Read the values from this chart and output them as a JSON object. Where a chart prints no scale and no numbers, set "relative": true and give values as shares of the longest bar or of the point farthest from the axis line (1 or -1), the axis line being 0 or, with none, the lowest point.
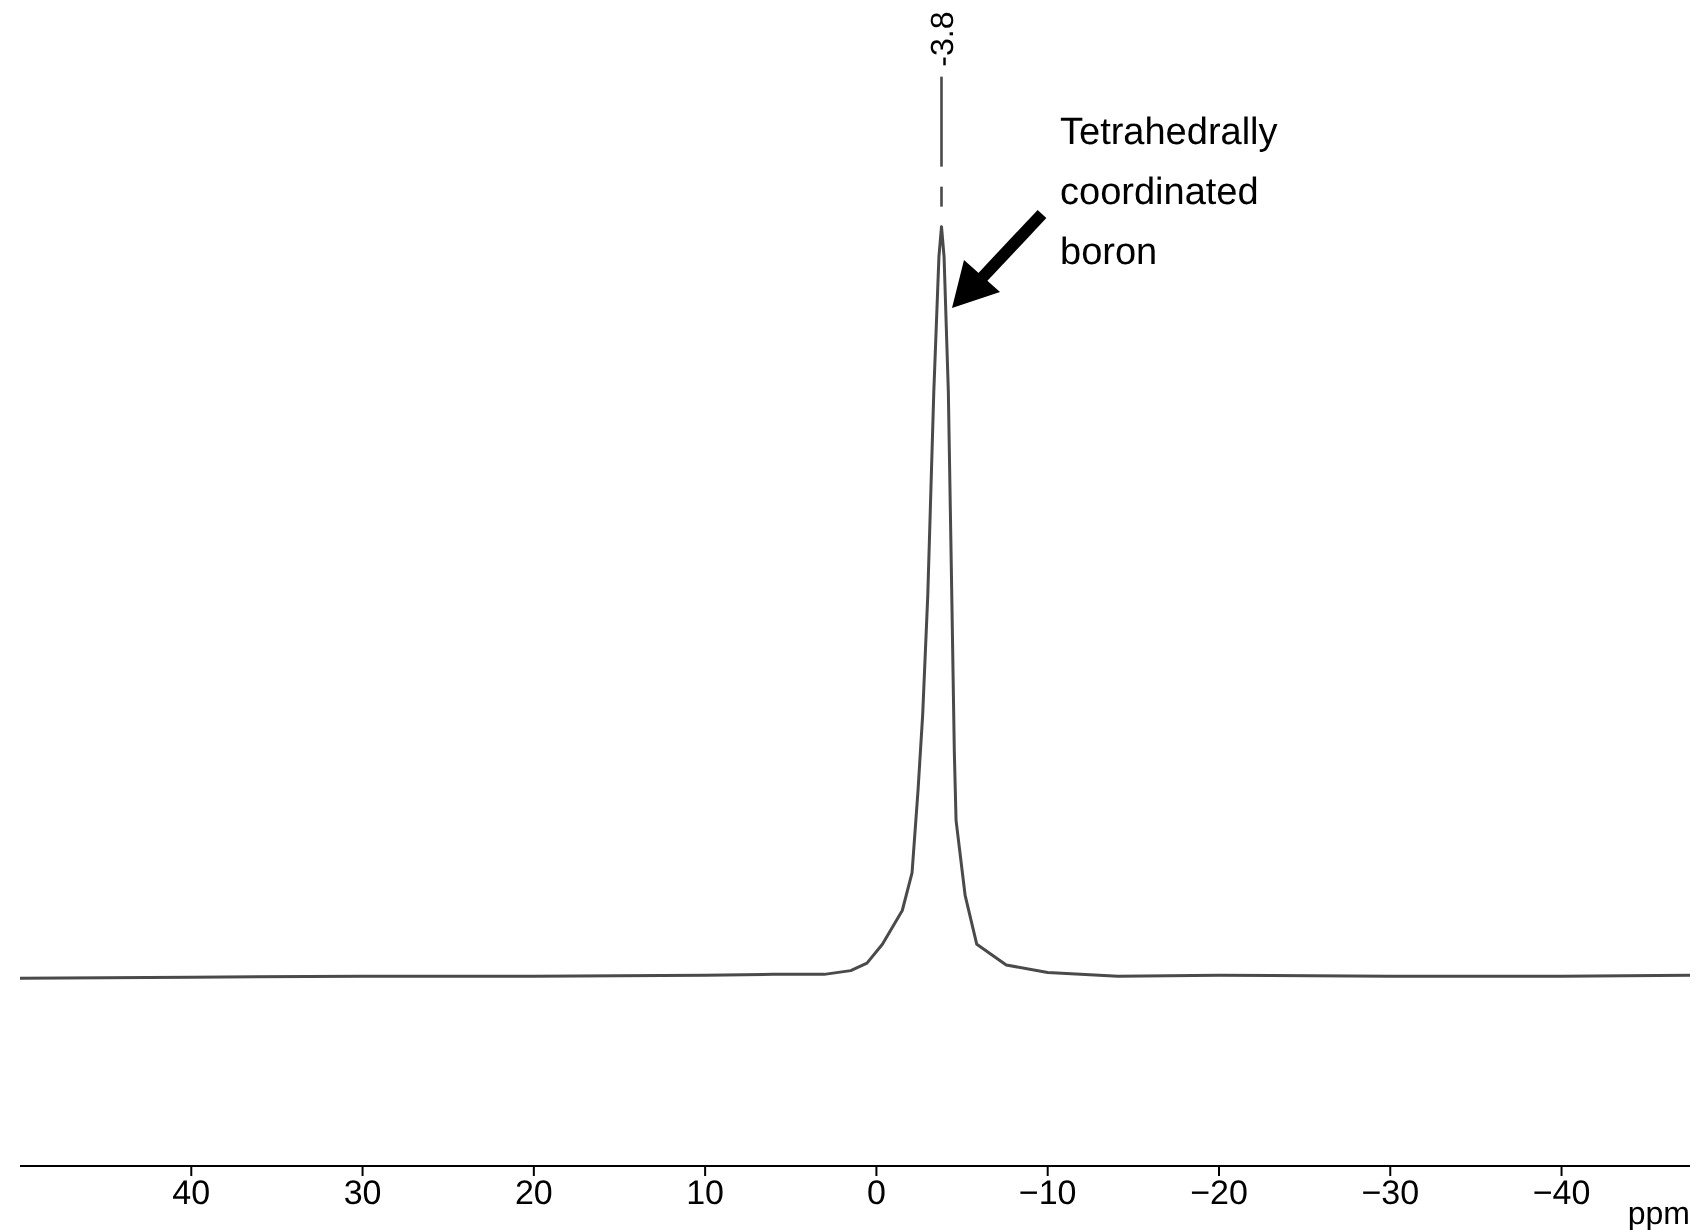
{
  "chart_data": {
    "type": "line",
    "relative": true,
    "xlabel": "ppm",
    "xlim": [
      50,
      -47.5
    ],
    "xticks": [
      40,
      30,
      20,
      10,
      0,
      {
        "value": -10,
        "label": "−10"
      },
      {
        "value": -20,
        "label": "−20"
      },
      {
        "value": -30,
        "label": "−30"
      },
      {
        "value": -40,
        "label": "−40"
      }
    ],
    "x": [
      50,
      40,
      30,
      20,
      10,
      6,
      3.05,
      1.5,
      0.55,
      -0.35,
      -1.51,
      -2.08,
      -2.43,
      -2.7,
      -3.0,
      -3.35,
      -3.65,
      -3.8,
      -3.95,
      -4.2,
      -4.4,
      -4.55,
      -4.65,
      -5.18,
      -5.86,
      -7.58,
      -10,
      -14.1,
      -20,
      -30,
      -40,
      -47.5
    ],
    "series": [
      {
        "color": "#4a4a4a",
        "values": [
          0.2,
          0.201,
          0.202,
          0.202,
          0.203,
          0.204,
          0.204,
          0.208,
          0.216,
          0.236,
          0.272,
          0.312,
          0.4,
          0.48,
          0.608,
          0.824,
          0.968,
          1,
          0.968,
          0.824,
          0.608,
          0.44,
          0.368,
          0.288,
          0.236,
          0.214,
          0.206,
          0.202,
          0.203,
          0.202,
          0.202,
          0.203
        ]
      }
    ],
    "annotations": [
      "-3.8",
      "Tetrahedrally coordinated boron"
    ],
    "marker": "none",
    "line_style": "solid"
  }
}
